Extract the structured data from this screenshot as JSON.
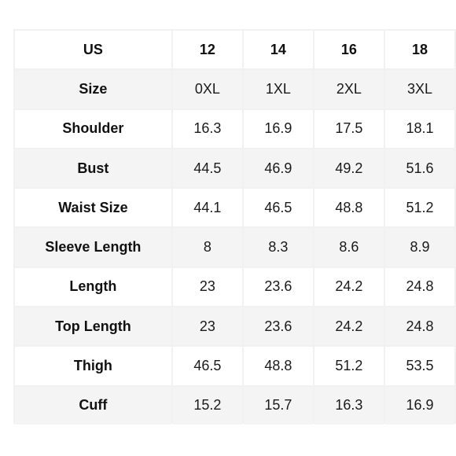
{
  "table": {
    "header": [
      "US",
      "12",
      "14",
      "16",
      "18"
    ],
    "rows": [
      [
        "Size",
        "0XL",
        "1XL",
        "2XL",
        "3XL"
      ],
      [
        "Shoulder",
        "16.3",
        "16.9",
        "17.5",
        "18.1"
      ],
      [
        "Bust",
        "44.5",
        "46.9",
        "49.2",
        "51.6"
      ],
      [
        "Waist Size",
        "44.1",
        "46.5",
        "48.8",
        "51.2"
      ],
      [
        "Sleeve Length",
        "8",
        "8.3",
        "8.6",
        "8.9"
      ],
      [
        "Length",
        "23",
        "23.6",
        "24.2",
        "24.8"
      ],
      [
        "Top Length",
        "23",
        "23.6",
        "24.2",
        "24.8"
      ],
      [
        "Thigh",
        "46.5",
        "48.8",
        "51.2",
        "53.5"
      ],
      [
        "Cuff",
        "15.2",
        "15.7",
        "16.3",
        "16.9"
      ]
    ]
  }
}
